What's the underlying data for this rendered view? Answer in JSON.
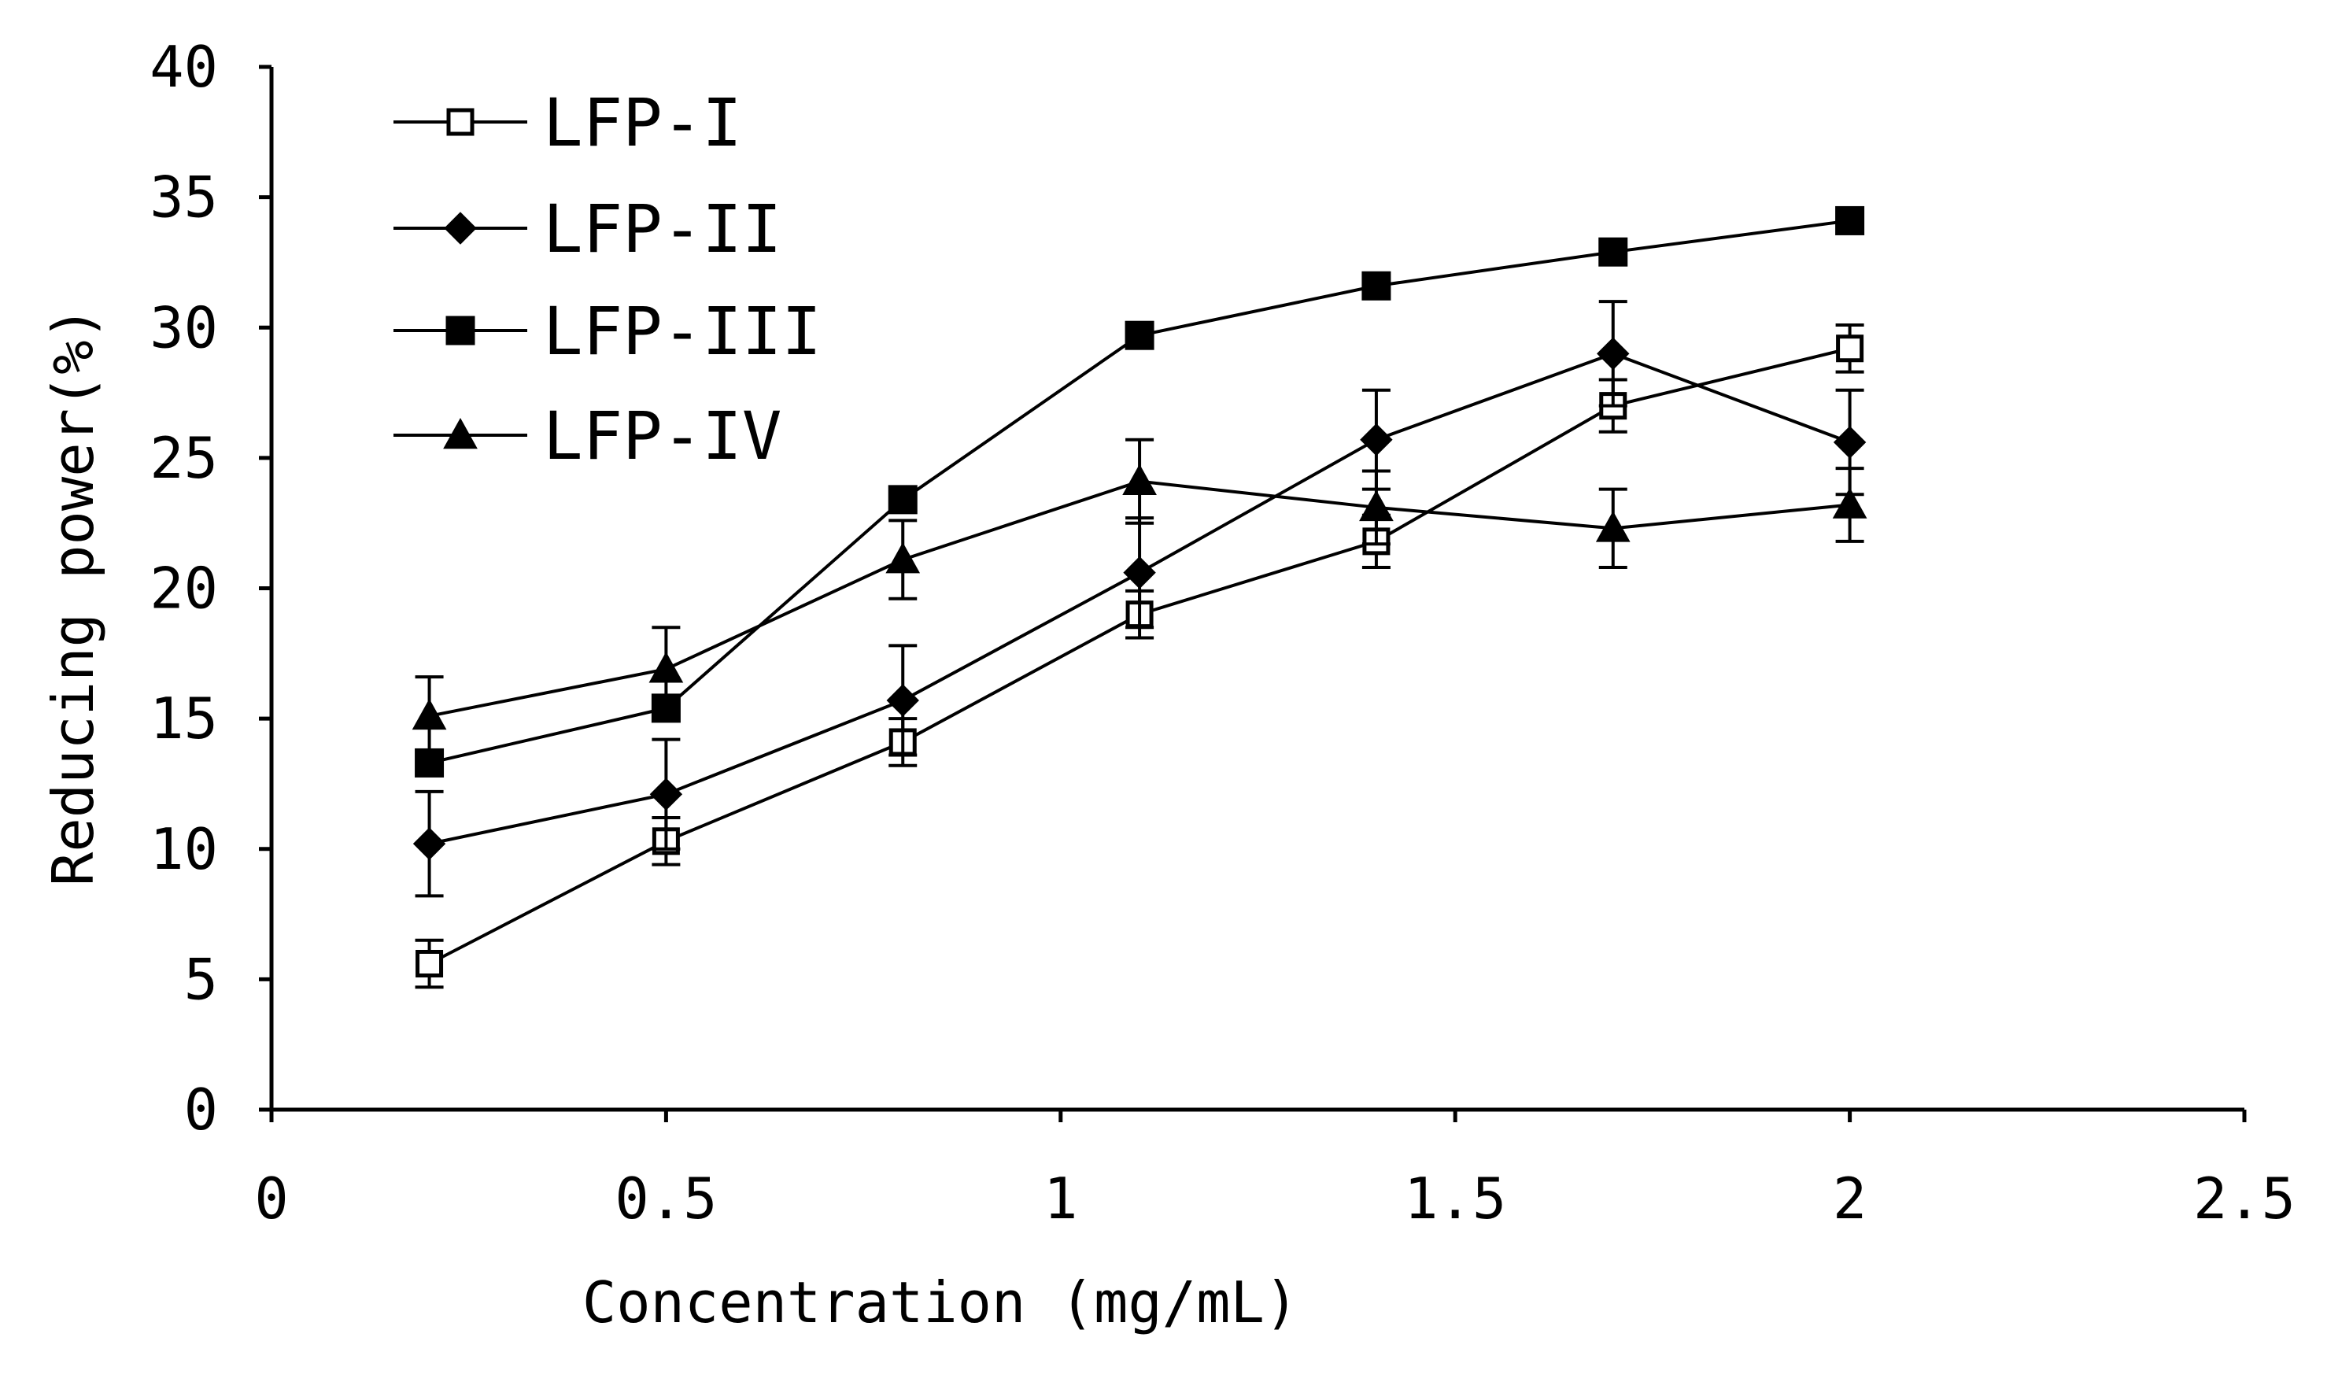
{
  "chart_data": {
    "type": "line",
    "title": "",
    "xlabel": "Concentration (mg/mL)",
    "ylabel": "Reducing power(%)",
    "xlim": [
      0,
      2.5
    ],
    "ylim": [
      0,
      40
    ],
    "x_ticks": [
      0,
      0.5,
      1,
      1.5,
      2,
      2.5
    ],
    "x_tick_labels": [
      "0",
      "0.5",
      "1",
      "1.5",
      "2",
      "2.5"
    ],
    "y_ticks": [
      0,
      5,
      10,
      15,
      20,
      25,
      30,
      35,
      40
    ],
    "y_tick_labels": [
      "0",
      "5",
      "10",
      "15",
      "20",
      "25",
      "30",
      "35",
      "40"
    ],
    "grid": false,
    "legend_position": "top-left",
    "x": [
      0.2,
      0.5,
      0.8,
      1.1,
      1.4,
      1.7,
      2.0
    ],
    "series": [
      {
        "name": "LFP-I",
        "marker": "open-square",
        "values": [
          5.6,
          10.3,
          14.1,
          19.0,
          21.8,
          27.0,
          29.2
        ],
        "errors": [
          0.9,
          0.9,
          0.9,
          0.9,
          1.0,
          1.0,
          0.9
        ]
      },
      {
        "name": "LFP-II",
        "marker": "diamond",
        "values": [
          10.2,
          12.1,
          15.7,
          20.6,
          25.7,
          29.0,
          25.6
        ],
        "errors": [
          2.0,
          2.1,
          2.1,
          2.1,
          1.9,
          2.0,
          2.0
        ]
      },
      {
        "name": "LFP-III",
        "marker": "filled-square",
        "values": [
          13.3,
          15.4,
          23.4,
          29.7,
          31.6,
          32.9,
          34.1
        ],
        "errors": [
          0,
          0,
          0,
          0,
          0,
          0,
          0
        ]
      },
      {
        "name": "LFP-IV",
        "marker": "triangle",
        "values": [
          15.1,
          16.9,
          21.1,
          24.1,
          23.1,
          22.3,
          23.2
        ],
        "errors": [
          1.5,
          1.6,
          1.5,
          1.6,
          1.4,
          1.5,
          1.4
        ]
      }
    ]
  }
}
